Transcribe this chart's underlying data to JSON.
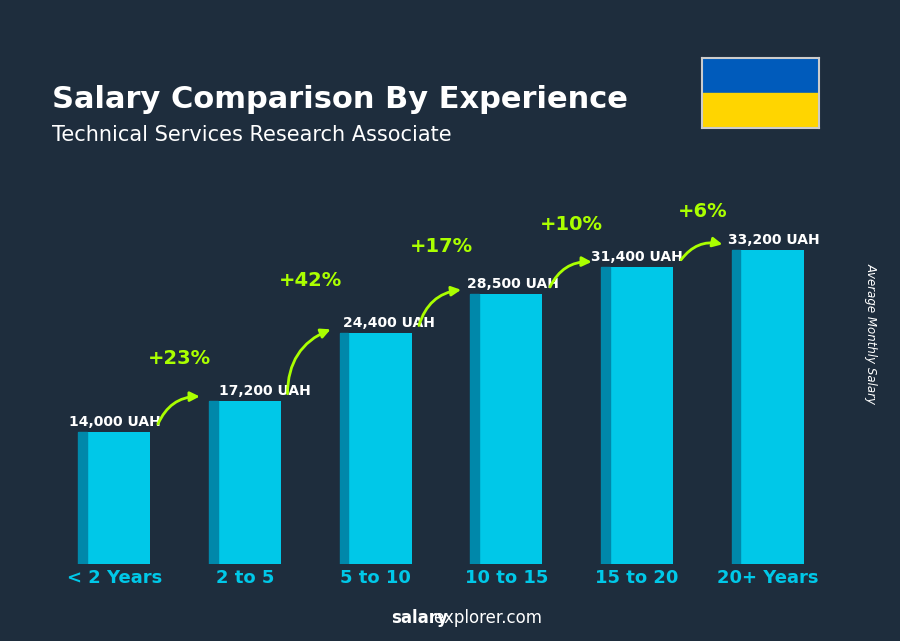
{
  "title": "Salary Comparison By Experience",
  "subtitle": "Technical Services Research Associate",
  "categories": [
    "< 2 Years",
    "2 to 5",
    "5 to 10",
    "10 to 15",
    "15 to 20",
    "20+ Years"
  ],
  "values": [
    14000,
    17200,
    24400,
    28500,
    31400,
    33200
  ],
  "labels": [
    "14,000 UAH",
    "17,200 UAH",
    "24,400 UAH",
    "28,500 UAH",
    "31,400 UAH",
    "33,200 UAH"
  ],
  "pct_changes": [
    "+23%",
    "+42%",
    "+17%",
    "+10%",
    "+6%"
  ],
  "bar_color": "#00c8e8",
  "bar_color_dark": "#0088aa",
  "bg_color": "#1e2d3d",
  "title_color": "#ffffff",
  "subtitle_color": "#ffffff",
  "label_color": "#ffffff",
  "pct_color": "#aaff00",
  "xlabel_color": "#00c8e8",
  "ylabel_text": "Average Monthly Salary",
  "watermark": "salaryexplorer.com",
  "ukraine_flag_blue": "#005bbb",
  "ukraine_flag_yellow": "#ffd500",
  "arrow_heights_offset": [
    4000,
    5000,
    4500,
    4000,
    3500
  ],
  "ylim": [
    0,
    44000
  ]
}
